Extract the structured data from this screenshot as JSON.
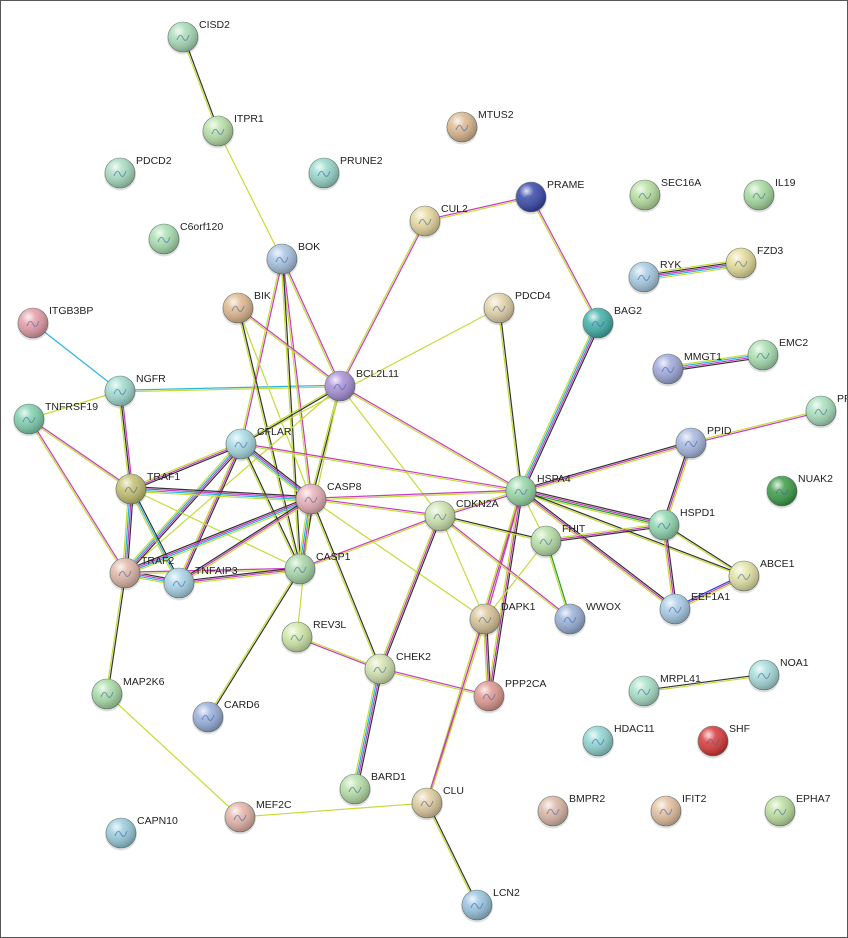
{
  "nodes": [
    {
      "name": "CISD2",
      "color": "#a8dcb8"
    },
    {
      "name": "ITPR1",
      "color": "#b8e0a8"
    },
    {
      "name": "MTUS2",
      "color": "#dcb890"
    },
    {
      "name": "PDCD2",
      "color": "#a8dcc0"
    },
    {
      "name": "PRUNE2",
      "color": "#98d8cc"
    },
    {
      "name": "PRAME",
      "color": "#3848a8"
    },
    {
      "name": "SEC16A",
      "color": "#b8e0a0"
    },
    {
      "name": "IL19",
      "color": "#a8dca0"
    },
    {
      "name": "CUL2",
      "color": "#e8d8a0"
    },
    {
      "name": "C6orf120",
      "color": "#a8e0b0"
    },
    {
      "name": "BOK",
      "color": "#a8c4e4"
    },
    {
      "name": "RYK",
      "color": "#a8cce4"
    },
    {
      "name": "FZD3",
      "color": "#e4dc98"
    },
    {
      "name": "BIK",
      "color": "#e0b890"
    },
    {
      "name": "PDCD4",
      "color": "#e4d4a8"
    },
    {
      "name": "BAG2",
      "color": "#40b0a8"
    },
    {
      "name": "ITGB3BP",
      "color": "#e49ca8"
    },
    {
      "name": "MMGT1",
      "color": "#a0a8dc"
    },
    {
      "name": "EMC2",
      "color": "#a8e0b0"
    },
    {
      "name": "NGFR",
      "color": "#a0dcd0"
    },
    {
      "name": "BCL2L11",
      "color": "#a890d8"
    },
    {
      "name": "PPAR",
      "color": "#a8e0bc"
    },
    {
      "name": "TNFRSF19",
      "color": "#80d0b0"
    },
    {
      "name": "PPID",
      "color": "#a8b8e0"
    },
    {
      "name": "CFLAR",
      "color": "#a8dce4"
    },
    {
      "name": "TRAF1",
      "color": "#c4c070"
    },
    {
      "name": "HSPA4",
      "color": "#98d8a8"
    },
    {
      "name": "NUAK2",
      "color": "#3c9c48"
    },
    {
      "name": "CASP8",
      "color": "#e8b0b8"
    },
    {
      "name": "CDKN2A",
      "color": "#d0e4b0"
    },
    {
      "name": "HSPD1",
      "color": "#90d8b0"
    },
    {
      "name": "FHIT",
      "color": "#b8e0a8"
    },
    {
      "name": "TRAF2",
      "color": "#e0b8a8"
    },
    {
      "name": "TNFAIP3",
      "color": "#a8d4e8"
    },
    {
      "name": "CASP1",
      "color": "#a8d8a8"
    },
    {
      "name": "ABCE1",
      "color": "#e4e4a8"
    },
    {
      "name": "DAPK1",
      "color": "#d8c498"
    },
    {
      "name": "WWOX",
      "color": "#98b0d8"
    },
    {
      "name": "EEF1A1",
      "color": "#a8cce8"
    },
    {
      "name": "REV3L",
      "color": "#d0e8a8"
    },
    {
      "name": "CHEK2",
      "color": "#d4e4b0"
    },
    {
      "name": "PPP2CA",
      "color": "#e09890"
    },
    {
      "name": "MAP2K6",
      "color": "#a8dca8"
    },
    {
      "name": "MRPL41",
      "color": "#a8e0c8"
    },
    {
      "name": "NOA1",
      "color": "#a8dcdc"
    },
    {
      "name": "CARD6",
      "color": "#98b0dc"
    },
    {
      "name": "HDAC11",
      "color": "#90d4d4"
    },
    {
      "name": "SHF",
      "color": "#d83838"
    },
    {
      "name": "BARD1",
      "color": "#b8e0a8"
    },
    {
      "name": "CLU",
      "color": "#e0cca0"
    },
    {
      "name": "MEF2C",
      "color": "#e4b4a8"
    },
    {
      "name": "BMPR2",
      "color": "#dcb8a8"
    },
    {
      "name": "IFIT2",
      "color": "#e4c0a0"
    },
    {
      "name": "EPHA7",
      "color": "#bce0a0"
    },
    {
      "name": "CAPN10",
      "color": "#98ccdc"
    },
    {
      "name": "LCN2",
      "color": "#98c4e0"
    }
  ],
  "evidence_colors": {
    "y": "#c4dc3a",
    "m": "#c83cc0",
    "k": "#333333",
    "c": "#28b4e0",
    "g": "#20a030",
    "b": "#3048c0"
  },
  "edges": [
    [
      "CISD2",
      "ITPR1",
      "ky"
    ],
    [
      "ITPR1",
      "BOK",
      "y"
    ],
    [
      "CUL2",
      "PRAME",
      "my"
    ],
    [
      "CUL2",
      "BCL2L11",
      "my"
    ],
    [
      "PRAME",
      "BAG2",
      "my"
    ],
    [
      "RYK",
      "FZD3",
      "ykmcy"
    ],
    [
      "MMGT1",
      "EMC2",
      "ycmk"
    ],
    [
      "PPAR",
      "PPID",
      "my"
    ],
    [
      "ITGB3BP",
      "NGFR",
      "c"
    ],
    [
      "NGFR",
      "BCL2L11",
      "cy"
    ],
    [
      "NGFR",
      "TRAF1",
      "mky"
    ],
    [
      "NGFR",
      "TNFRSF19",
      "y"
    ],
    [
      "TNFRSF19",
      "TRAF1",
      "my"
    ],
    [
      "TNFRSF19",
      "TRAF2",
      "my"
    ],
    [
      "BOK",
      "BCL2L11",
      "my"
    ],
    [
      "BOK",
      "CASP8",
      "my"
    ],
    [
      "BOK",
      "CASP1",
      "ky"
    ],
    [
      "BOK",
      "CFLAR",
      "my"
    ],
    [
      "BIK",
      "BCL2L11",
      "my"
    ],
    [
      "BIK",
      "CASP1",
      "ky"
    ],
    [
      "BIK",
      "CASP8",
      "y"
    ],
    [
      "PDCD4",
      "CFLAR",
      "y"
    ],
    [
      "PDCD4",
      "HSPA4",
      "ky"
    ],
    [
      "BAG2",
      "HSPA4",
      "kmcy"
    ],
    [
      "BCL2L11",
      "HSPA4",
      "my"
    ],
    [
      "BCL2L11",
      "CASP8",
      "ky"
    ],
    [
      "BCL2L11",
      "CFLAR",
      "ky"
    ],
    [
      "BCL2L11",
      "CASP1",
      "y"
    ],
    [
      "BCL2L11",
      "CDKN2A",
      "y"
    ],
    [
      "BCL2L11",
      "TRAF2",
      "y"
    ],
    [
      "CFLAR",
      "TRAF1",
      "kmy"
    ],
    [
      "CFLAR",
      "TRAF2",
      "kmcy"
    ],
    [
      "CFLAR",
      "CASP8",
      "kmcy"
    ],
    [
      "CFLAR",
      "CASP1",
      "ky"
    ],
    [
      "CFLAR",
      "TNFAIP3",
      "kmy"
    ],
    [
      "CFLAR",
      "HSPA4",
      "my"
    ],
    [
      "TRAF1",
      "TRAF2",
      "kmcy"
    ],
    [
      "TRAF1",
      "TNFAIP3",
      "kcy"
    ],
    [
      "TRAF1",
      "CASP8",
      "kmcy"
    ],
    [
      "TRAF1",
      "CASP1",
      "y"
    ],
    [
      "TRAF2",
      "TNFAIP3",
      "kmcy"
    ],
    [
      "TRAF2",
      "CASP8",
      "kmcy"
    ],
    [
      "TRAF2",
      "CASP1",
      "my"
    ],
    [
      "TRAF2",
      "MAP2K6",
      "ky"
    ],
    [
      "TNFAIP3",
      "CASP8",
      "kmy"
    ],
    [
      "TNFAIP3",
      "CASP1",
      "kmy"
    ],
    [
      "CASP8",
      "CASP1",
      "kmcy"
    ],
    [
      "CASP8",
      "HSPA4",
      "my"
    ],
    [
      "CASP8",
      "CDKN2A",
      "my"
    ],
    [
      "CASP8",
      "CHEK2",
      "ky"
    ],
    [
      "CASP8",
      "DAPK1",
      "y"
    ],
    [
      "CASP8",
      "REV3L",
      "y"
    ],
    [
      "CASP1",
      "CARD6",
      "ky"
    ],
    [
      "CASP1",
      "CDKN2A",
      "my"
    ],
    [
      "HSPA4",
      "HSPD1",
      "kmgy"
    ],
    [
      "HSPA4",
      "PPID",
      "kmy"
    ],
    [
      "HSPA4",
      "ABCE1",
      "ky"
    ],
    [
      "HSPA4",
      "EEF1A1",
      "kmy"
    ],
    [
      "HSPA4",
      "FHIT",
      "y"
    ],
    [
      "HSPA4",
      "DAPK1",
      "my"
    ],
    [
      "HSPA4",
      "PPP2CA",
      "kmy"
    ],
    [
      "HSPA4",
      "CDKN2A",
      "my"
    ],
    [
      "HSPA4",
      "CLU",
      "my"
    ],
    [
      "CDKN2A",
      "CHEK2",
      "kmy"
    ],
    [
      "CDKN2A",
      "DAPK1",
      "y"
    ],
    [
      "CDKN2A",
      "FHIT",
      "ky"
    ],
    [
      "CDKN2A",
      "WWOX",
      "my"
    ],
    [
      "HSPD1",
      "PPID",
      "kmy"
    ],
    [
      "HSPD1",
      "EEF1A1",
      "kmy"
    ],
    [
      "HSPD1",
      "ABCE1",
      "ky"
    ],
    [
      "HSPD1",
      "FHIT",
      "kmy"
    ],
    [
      "EEF1A1",
      "ABCE1",
      "bmy"
    ],
    [
      "FHIT",
      "WWOX",
      "gy"
    ],
    [
      "FHIT",
      "DAPK1",
      "y"
    ],
    [
      "DAPK1",
      "PPP2CA",
      "kmy"
    ],
    [
      "CHEK2",
      "REV3L",
      "my"
    ],
    [
      "CHEK2",
      "PPP2CA",
      "my"
    ],
    [
      "CHEK2",
      "BARD1",
      "kmcy"
    ],
    [
      "MAP2K6",
      "MEF2C",
      "y"
    ],
    [
      "MEF2C",
      "CLU",
      "y"
    ],
    [
      "CLU",
      "LCN2",
      "ky"
    ],
    [
      "CLU",
      "DAPK1",
      "my"
    ],
    [
      "MRPL41",
      "NOA1",
      "ky"
    ]
  ]
}
